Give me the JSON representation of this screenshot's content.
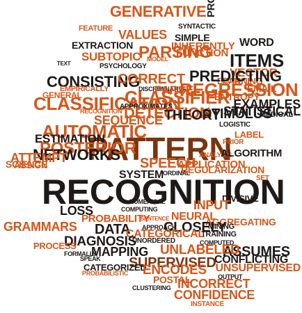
{
  "palette": {
    "orange": "#d4571a",
    "brown": "#7a3510",
    "dark": "#1f1a17",
    "mid": "#b34a10"
  },
  "words": [
    "PATTERN",
    "RECOGNITION",
    "GENERATIVE",
    "SYNTACTIC",
    "WORD",
    "FEATURE",
    "VALUES",
    "SIMPLE",
    "PROBLEM",
    "ITEMS",
    "EXTRACTION",
    "SUBTOPIC",
    "INHERENTLY",
    "FUNCTION",
    "VECTOR",
    "TEXT",
    "PSYCHOLOGY",
    "MODEL",
    "PARSING",
    "LEARNING",
    "CONSISTING",
    "EMPIRICALLY",
    "CORRECT",
    "FIELDS",
    "PREDICTING",
    "GENERAL",
    "DISCRIMINATIVE",
    "PARSE",
    "REGRESSION",
    "ENTROPY",
    "EMAIL",
    "CLASSIFICATION",
    "CLASSIFIER",
    "STIMULUS",
    "EXAMPLES",
    "STATISTICAL",
    "APPROXIMATES",
    "RECOGNITION",
    "DETECTION",
    "THEORY",
    "MEDICAL",
    "SEQUENCE",
    "LOGISTIC",
    "AUTOMATIC",
    "ESTIMATION",
    "LABEL",
    "PRIOR",
    "POSTERIOR",
    "ANALYSIS",
    "ALGORITHM",
    "NETWORKS",
    "SPEECH",
    "APPLICATION",
    "ATTEMPT",
    "ASSIGN",
    "ORDINAL",
    "REGULARIZATION",
    "SCIENCE",
    "SYSTEM",
    "SET",
    "DIVISIVE",
    "LOSS",
    "NUMERICAL",
    "INPUT",
    "PROBABILITY",
    "COMPUTING",
    "NEURAL",
    "GRAMMARS",
    "DATA",
    "SENTENCE",
    "AGGREGATING",
    "APPROACH",
    "CLOSELY",
    "MINING",
    "CATEGORICAL",
    "TRAINING",
    "DIAGNOSIS",
    "UNORDERED",
    "COMPUTED",
    "PROCESS",
    "ASSUMES",
    "MAPPING",
    "UNLABELED",
    "CONFLICTING",
    "FORMALLY",
    "SPEAK",
    "SUPERVISED",
    "CATEGORIZED",
    "UNSUPERVISED",
    "PROBABILISTIC",
    "ENCODES",
    "OUTPUT",
    "POSTAL",
    "CLUSTERING",
    "INCORRECT",
    "CONFIDENCE",
    "INSTANCE"
  ]
}
